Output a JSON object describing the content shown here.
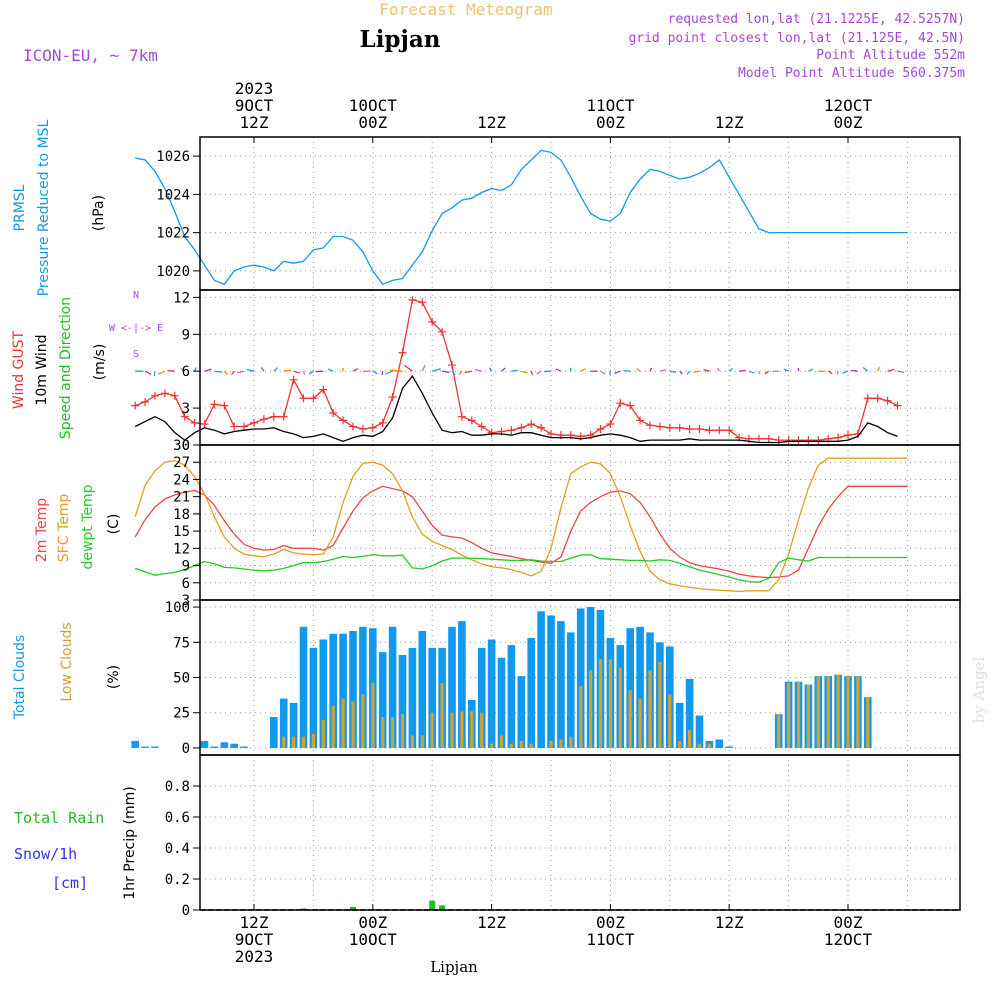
{
  "header": {
    "title": "Forecast Meteogram",
    "location": "Lipjan",
    "model": "ICON-EU, ~ 7km",
    "requested": "requested lon,lat (21.1225E, 42.5257N)",
    "grid_point": "grid point closest lon,lat (21.125E, 42.5N)",
    "point_altitude": "Point Altitude 552m",
    "model_altitude": "Model Point Altitude 560.375m"
  },
  "time_axis": {
    "top": [
      {
        "h": 12,
        "lines": [
          "2023",
          "9OCT",
          "12Z"
        ]
      },
      {
        "h": 24,
        "lines": [
          "10OCT",
          "00Z"
        ]
      },
      {
        "h": 36,
        "lines": [
          "12Z"
        ]
      },
      {
        "h": 48,
        "lines": [
          "11OCT",
          "00Z"
        ]
      },
      {
        "h": 60,
        "lines": [
          "12Z"
        ]
      },
      {
        "h": 72,
        "lines": [
          "12OCT",
          "00Z"
        ]
      }
    ],
    "bottom": [
      {
        "h": 12,
        "lines": [
          "12Z",
          "9OCT",
          "2023"
        ]
      },
      {
        "h": 24,
        "lines": [
          "00Z",
          "10OCT"
        ]
      },
      {
        "h": 36,
        "lines": [
          "12Z"
        ]
      },
      {
        "h": 48,
        "lines": [
          "00Z",
          "11OCT"
        ]
      },
      {
        "h": 60,
        "lines": [
          "12Z"
        ]
      },
      {
        "h": 72,
        "lines": [
          "00Z",
          "12OCT"
        ]
      }
    ],
    "footer_label": "Lipjan"
  },
  "watermark": "by Angel",
  "colors": {
    "pressure": "#1199ee",
    "gust": "#ee3333",
    "wind": "#000000",
    "direction": "#22bb22",
    "temp2m": "#ee4444",
    "sfc": "#e0a020",
    "dewpt": "#22cc22",
    "total_clouds": "#1199ee",
    "low_clouds": "#d4a030",
    "rain": "#22bb22",
    "snow": "#3333ee",
    "compass": "#aa44dd",
    "header_title": "#f0c070",
    "header_info": "#aa44dd"
  },
  "chart_data": [
    {
      "type": "line",
      "panel": "pressure",
      "ylabel_lines": [
        "PRMSL",
        "Pressure Reduced to MSL"
      ],
      "unit": "(hPa)",
      "ylim": [
        1019,
        1027
      ],
      "yticks": [
        1020,
        1022,
        1024,
        1026
      ],
      "x_hours": [
        0,
        1,
        2,
        3,
        4,
        5,
        6,
        7,
        8,
        9,
        10,
        11,
        12,
        13,
        14,
        15,
        16,
        17,
        18,
        19,
        20,
        21,
        22,
        23,
        24,
        25,
        26,
        27,
        28,
        29,
        30,
        31,
        32,
        33,
        34,
        35,
        36,
        37,
        38,
        39,
        40,
        41,
        42,
        43,
        44,
        45,
        46,
        47,
        48,
        49,
        50,
        51,
        52,
        53,
        54,
        55,
        56,
        57,
        58,
        59,
        60,
        61,
        62,
        63,
        64,
        65,
        66,
        67,
        68,
        69,
        70,
        71,
        72,
        73,
        74,
        75,
        76,
        77,
        78
      ],
      "series": [
        {
          "name": "PRMSL",
          "values": [
            1025.9,
            1025.8,
            1025.2,
            1024.3,
            1023.1,
            1021.8,
            1021.1,
            1020.3,
            1019.5,
            1019.3,
            1020.0,
            1020.2,
            1020.3,
            1020.2,
            1020.0,
            1020.5,
            1020.4,
            1020.5,
            1021.1,
            1021.2,
            1021.8,
            1021.8,
            1021.6,
            1021.0,
            1020.0,
            1019.3,
            1019.5,
            1019.6,
            1020.3,
            1021.0,
            1022.1,
            1023.0,
            1023.3,
            1023.7,
            1023.8,
            1024.1,
            1024.3,
            1024.2,
            1024.5,
            1025.3,
            1025.8,
            1026.3,
            1026.2,
            1025.8,
            1024.9,
            1023.9,
            1023.0,
            1022.7,
            1022.6,
            1023.0,
            1024.1,
            1024.8,
            1025.3,
            1025.2,
            1025.0,
            1024.8,
            1024.9,
            1025.1,
            1025.4,
            1025.8,
            1024.9,
            1024.0,
            1023.1,
            1022.2,
            1022.0,
            1022.0,
            1022.0,
            1022.0,
            1022.0,
            1022.0,
            1022.0,
            1022.0,
            1022.0,
            1022.0,
            1022.0,
            1022.0,
            1022.0,
            1022.0,
            1022.0
          ]
        }
      ]
    },
    {
      "type": "line",
      "panel": "wind",
      "ylabel_lines": [
        "Wind GUST",
        "10m Wind",
        "Speed and Direction"
      ],
      "unit": "(m/s)",
      "compass": [
        "N",
        "W <-|-> E",
        "S"
      ],
      "ylim": [
        0,
        12.6
      ],
      "yticks": [
        0,
        3,
        6,
        9,
        12
      ],
      "x_hours": [
        0,
        1,
        2,
        3,
        4,
        5,
        6,
        7,
        8,
        9,
        10,
        11,
        12,
        13,
        14,
        15,
        16,
        17,
        18,
        19,
        20,
        21,
        22,
        23,
        24,
        25,
        26,
        27,
        28,
        29,
        30,
        31,
        32,
        33,
        34,
        35,
        36,
        37,
        38,
        39,
        40,
        41,
        42,
        43,
        44,
        45,
        46,
        47,
        48,
        49,
        50,
        51,
        52,
        53,
        54,
        55,
        56,
        57,
        58,
        59,
        60,
        61,
        62,
        63,
        64,
        65,
        66,
        67,
        68,
        69,
        70,
        71,
        72,
        73,
        74,
        75,
        76,
        77
      ],
      "series": [
        {
          "name": "Wind GUST",
          "values": [
            3.2,
            3.5,
            4.0,
            4.2,
            4.0,
            2.3,
            1.8,
            1.7,
            3.3,
            3.2,
            1.5,
            1.5,
            1.8,
            2.1,
            2.3,
            2.3,
            5.3,
            3.8,
            3.8,
            4.5,
            2.6,
            2.0,
            1.5,
            1.3,
            1.4,
            1.8,
            3.9,
            7.5,
            11.8,
            11.6,
            10.0,
            9.2,
            6.5,
            2.3,
            2.0,
            1.5,
            1.0,
            1.1,
            1.2,
            1.4,
            1.7,
            1.4,
            0.9,
            0.8,
            0.8,
            0.7,
            0.8,
            1.3,
            1.7,
            3.4,
            3.2,
            2.0,
            1.6,
            1.5,
            1.4,
            1.4,
            1.3,
            1.3,
            1.2,
            1.2,
            1.2,
            0.6,
            0.5,
            0.5,
            0.5,
            0.4,
            0.4,
            0.4,
            0.4,
            0.4,
            0.5,
            0.6,
            0.8,
            0.9,
            3.8,
            3.8,
            3.6,
            3.2
          ]
        },
        {
          "name": "10m Wind",
          "values": [
            1.5,
            1.9,
            2.3,
            1.9,
            1.0,
            0.4,
            1.0,
            1.4,
            1.2,
            0.9,
            1.1,
            1.2,
            1.3,
            1.3,
            1.4,
            1.1,
            0.9,
            0.6,
            0.7,
            0.9,
            0.6,
            0.3,
            0.6,
            0.8,
            0.7,
            1.1,
            2.2,
            4.6,
            5.6,
            4.2,
            2.6,
            1.2,
            1.0,
            1.1,
            0.8,
            0.8,
            0.9,
            0.9,
            0.8,
            1.0,
            1.0,
            0.8,
            0.6,
            0.6,
            0.6,
            0.5,
            0.6,
            0.8,
            0.9,
            0.8,
            0.6,
            0.3,
            0.4,
            0.4,
            0.4,
            0.4,
            0.5,
            0.4,
            0.4,
            0.4,
            0.4,
            0.4,
            0.3,
            0.2,
            0.2,
            0.2,
            0.3,
            0.3,
            0.3,
            0.3,
            0.3,
            0.3,
            0.4,
            0.7,
            1.8,
            1.5,
            1.0,
            0.7
          ]
        }
      ],
      "barb_arrows": "10m wind speed and direction arrows plotted along the 6 m/s line"
    },
    {
      "type": "line",
      "panel": "temperature",
      "ylabel_lines": [
        "2m Temp",
        "SFC Temp",
        "dewpt Temp"
      ],
      "unit": "(C)",
      "ylim": [
        3,
        30
      ],
      "yticks": [
        3,
        6,
        9,
        12,
        15,
        18,
        21,
        24,
        27,
        30
      ],
      "x_hours": [
        0,
        1,
        2,
        3,
        4,
        5,
        6,
        7,
        8,
        9,
        10,
        11,
        12,
        13,
        14,
        15,
        16,
        17,
        18,
        19,
        20,
        21,
        22,
        23,
        24,
        25,
        26,
        27,
        28,
        29,
        30,
        31,
        32,
        33,
        34,
        35,
        36,
        37,
        38,
        39,
        40,
        41,
        42,
        43,
        44,
        45,
        46,
        47,
        48,
        49,
        50,
        51,
        52,
        53,
        54,
        55,
        56,
        57,
        58,
        59,
        60,
        61,
        62,
        63,
        64,
        65,
        66,
        67,
        68,
        69,
        70,
        71,
        72,
        73,
        74,
        75,
        76,
        77,
        78
      ],
      "series": [
        {
          "name": "2m Temp",
          "values": [
            14.0,
            17.0,
            19.2,
            20.6,
            21.3,
            21.8,
            22.1,
            21.3,
            19.5,
            16.8,
            14.5,
            12.7,
            12.0,
            11.7,
            11.8,
            12.5,
            12.0,
            12.0,
            12.0,
            11.7,
            12.5,
            15.5,
            18.5,
            20.8,
            22.0,
            22.8,
            22.4,
            22.0,
            21.0,
            18.5,
            16.0,
            14.3,
            14.0,
            13.8,
            13.0,
            12.0,
            11.2,
            10.9,
            10.6,
            10.2,
            9.9,
            9.6,
            9.4,
            10.5,
            15.0,
            18.5,
            20.0,
            21.0,
            21.8,
            22.0,
            21.5,
            20.0,
            17.5,
            14.5,
            12.0,
            10.5,
            9.5,
            9.0,
            8.7,
            8.4,
            8.0,
            7.5,
            7.2,
            7.0,
            6.9,
            7.0,
            7.2,
            8.2,
            12.0,
            15.8,
            18.8,
            21.0,
            22.8,
            22.8,
            22.8,
            22.8,
            22.8,
            22.8,
            22.8
          ]
        },
        {
          "name": "SFC Temp",
          "values": [
            17.5,
            23.0,
            25.5,
            27.0,
            27.3,
            26.5,
            24.5,
            21.5,
            17.5,
            14.0,
            12.0,
            11.0,
            10.7,
            10.5,
            11.0,
            11.8,
            11.2,
            11.0,
            10.9,
            11.0,
            14.0,
            20.0,
            24.5,
            26.8,
            27.0,
            26.5,
            25.0,
            22.0,
            17.5,
            14.5,
            13.2,
            12.5,
            11.8,
            10.8,
            10.0,
            9.3,
            8.8,
            8.6,
            8.3,
            7.8,
            7.2,
            8.0,
            12.0,
            19.0,
            25.0,
            26.2,
            27.0,
            26.7,
            25.0,
            21.0,
            16.0,
            11.5,
            8.0,
            6.5,
            5.8,
            5.5,
            5.2,
            5.0,
            4.8,
            4.7,
            4.6,
            4.5,
            4.6,
            4.6,
            4.6,
            6.5,
            11.0,
            17.0,
            22.5,
            26.5,
            27.7,
            27.7,
            27.7,
            27.7,
            27.7,
            27.7,
            27.7,
            27.7,
            27.7
          ]
        },
        {
          "name": "dewpt Temp",
          "values": [
            8.5,
            7.9,
            7.3,
            7.6,
            7.8,
            8.3,
            9.0,
            9.7,
            9.3,
            8.7,
            8.6,
            8.4,
            8.2,
            8.1,
            8.2,
            8.5,
            9.0,
            9.5,
            9.5,
            9.7,
            10.1,
            10.6,
            10.4,
            10.6,
            10.9,
            10.7,
            10.7,
            10.8,
            8.6,
            8.4,
            9.0,
            9.8,
            10.3,
            10.3,
            10.3,
            10.2,
            10.1,
            10.0,
            9.9,
            9.9,
            10.0,
            9.8,
            9.7,
            9.7,
            10.3,
            10.8,
            10.9,
            10.2,
            10.1,
            10.0,
            9.9,
            9.9,
            9.8,
            10.0,
            9.9,
            9.4,
            8.8,
            8.2,
            7.8,
            7.4,
            7.0,
            6.5,
            6.2,
            6.1,
            6.8,
            9.5,
            10.3,
            10.0,
            9.8,
            10.4,
            10.4,
            10.4,
            10.4,
            10.4,
            10.4,
            10.4,
            10.4,
            10.4,
            10.4
          ]
        }
      ]
    },
    {
      "type": "bar",
      "panel": "clouds",
      "ylabel_lines": [
        "Total Clouds",
        "Low Clouds"
      ],
      "unit": "(%)",
      "ylim": [
        -5,
        105
      ],
      "yticks": [
        0,
        25,
        50,
        75,
        100
      ],
      "x_hours": [
        0,
        1,
        2,
        3,
        4,
        5,
        6,
        7,
        8,
        9,
        10,
        11,
        12,
        13,
        14,
        15,
        16,
        17,
        18,
        19,
        20,
        21,
        22,
        23,
        24,
        25,
        26,
        27,
        28,
        29,
        30,
        31,
        32,
        33,
        34,
        35,
        36,
        37,
        38,
        39,
        40,
        41,
        42,
        43,
        44,
        45,
        46,
        47,
        48,
        49,
        50,
        51,
        52,
        53,
        54,
        55,
        56,
        57,
        58,
        59,
        60,
        61,
        62,
        63,
        64,
        65,
        66,
        67,
        68,
        69,
        70,
        71,
        72,
        73,
        74,
        75,
        76,
        77
      ],
      "series": [
        {
          "name": "Total Clouds",
          "values": [
            5,
            1,
            1,
            0,
            0,
            0,
            0,
            5,
            1,
            4,
            3,
            1,
            0,
            0,
            22,
            35,
            32,
            86,
            71,
            77,
            81,
            81,
            83,
            86,
            85,
            68,
            86,
            66,
            71,
            83,
            71,
            71,
            86,
            90,
            34,
            71,
            77,
            64,
            73,
            51,
            78,
            97,
            94,
            90,
            82,
            99,
            100,
            98,
            78,
            73,
            85,
            86,
            82,
            75,
            72,
            32,
            49,
            23,
            5,
            6,
            1,
            0,
            0,
            0,
            0,
            24,
            47,
            47,
            45,
            51,
            51,
            52,
            51,
            51,
            36,
            0,
            0,
            0
          ]
        },
        {
          "name": "Low Clouds",
          "values": [
            0,
            0,
            0,
            0,
            0,
            0,
            0,
            0,
            0,
            0,
            0,
            0,
            0,
            0,
            0,
            8,
            8,
            8,
            10,
            20,
            30,
            35,
            33,
            38,
            46,
            22,
            22,
            24,
            9,
            9,
            25,
            46,
            25,
            26,
            26,
            25,
            3,
            9,
            3,
            5,
            3,
            0,
            5,
            6,
            8,
            44,
            55,
            63,
            63,
            57,
            41,
            35,
            55,
            61,
            38,
            5,
            13,
            3,
            3,
            0,
            0,
            0,
            0,
            0,
            0,
            24,
            46,
            47,
            45,
            51,
            51,
            52,
            51,
            51,
            36,
            0,
            0,
            0
          ]
        }
      ]
    },
    {
      "type": "bar",
      "panel": "precipitation",
      "ylabel_lines": [
        "Total Rain",
        "Snow/1h",
        "[cm]"
      ],
      "axis_label": "1hr Precip (mm)",
      "ylim": [
        0,
        1.0
      ],
      "yticks": [
        0,
        0.2,
        0.4,
        0.6,
        0.8
      ],
      "x_hours": [
        17,
        22,
        30,
        31
      ],
      "series": [
        {
          "name": "Total Rain",
          "values": [
            0.01,
            0.02,
            0.06,
            0.03
          ]
        },
        {
          "name": "Snow/1h",
          "values": [
            0,
            0,
            0,
            0
          ]
        }
      ]
    }
  ]
}
